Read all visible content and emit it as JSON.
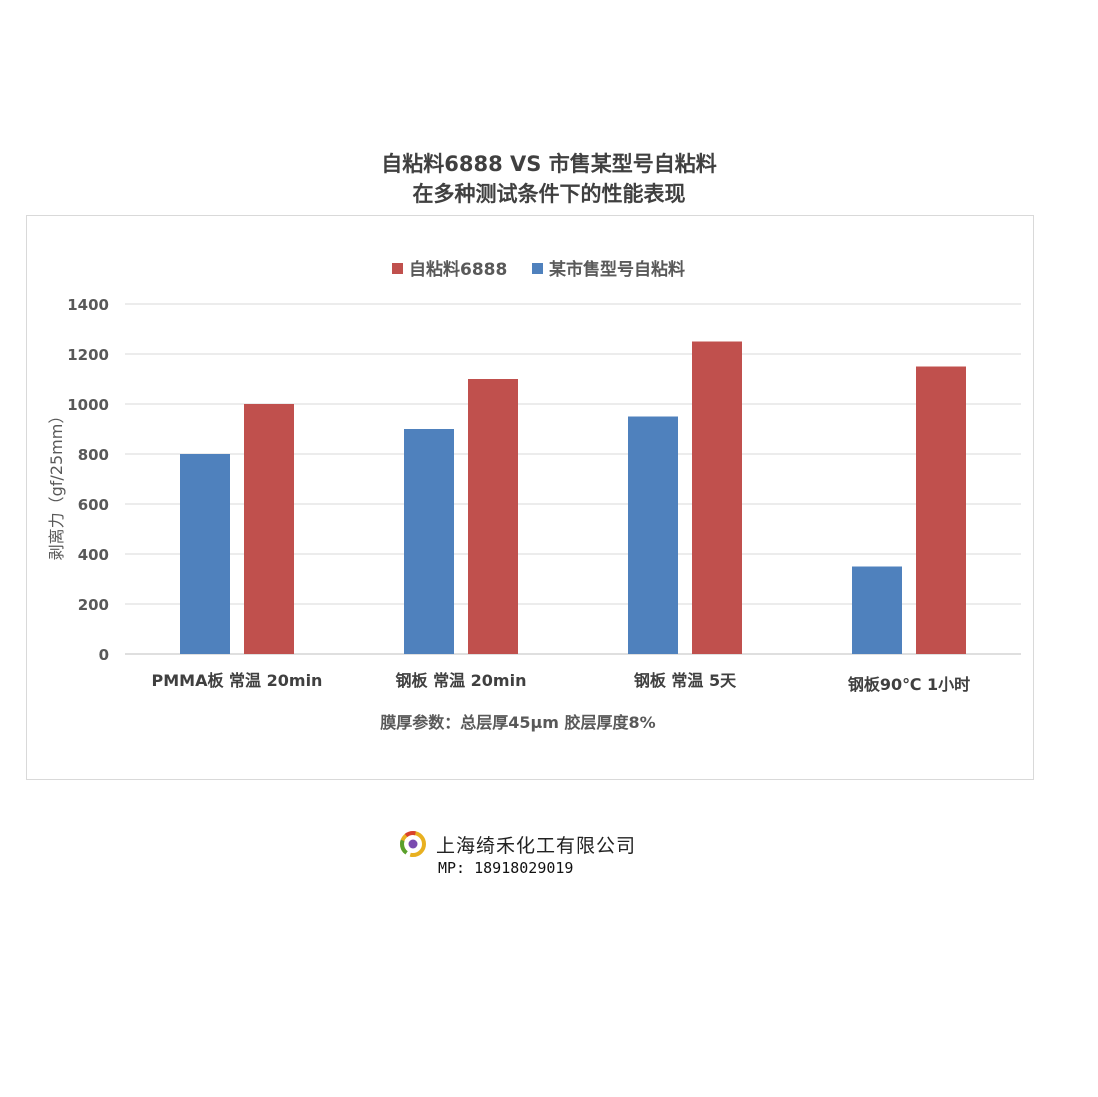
{
  "header": {
    "title_line1": "自粘料6888 VS 市售某型号自粘料",
    "title_line2": "在多种测试条件下的性能表现"
  },
  "chart_data": {
    "type": "bar",
    "categories": [
      "PMMA板 常温 20min",
      "钢板 常温 20min",
      "钢板 常温 5天",
      "钢板90℃ 1小时"
    ],
    "series": [
      {
        "name": "某市售型号自粘料",
        "color": "#4f81bd",
        "values": [
          800,
          900,
          950,
          350
        ]
      },
      {
        "name": "自粘料6888",
        "color": "#c0504d",
        "values": [
          1000,
          1100,
          1250,
          1150
        ]
      }
    ],
    "legend_order": [
      "自粘料6888",
      "某市售型号自粘料"
    ],
    "ylabel": "剥离力（gf/25mm）",
    "ylim": [
      0,
      1400
    ],
    "yticks": [
      0,
      200,
      400,
      600,
      800,
      1000,
      1200,
      1400
    ],
    "grid": true,
    "legend_position": "top-center",
    "note": "膜厚参数：总层厚45μm 胶层厚度8%"
  },
  "footer": {
    "company": "上海绮禾化工有限公司",
    "contact": "MP: 18918029019"
  }
}
